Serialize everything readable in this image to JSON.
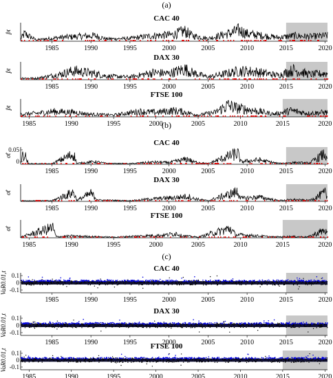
{
  "section_labels": [
    "(a)",
    "(b)",
    "(c)"
  ],
  "chart_data": [
    {
      "type": "line",
      "section": "(a)",
      "title": "CAC 40",
      "ylabel": "p̂t",
      "xlim": [
        1981,
        2020.3
      ],
      "xticks": [
        1985,
        1990,
        1995,
        2000,
        2005,
        2010,
        2015,
        2020
      ],
      "yticks": [],
      "shaded_region": [
        2015,
        2020.3
      ],
      "shade_color": "#c8c8c8",
      "line_color": "#000000",
      "marker_color": "#e00000",
      "series": [
        {
          "x": [
            1981,
            1981.5,
            1983,
            1986,
            1987.9,
            1990.5,
            1992,
            1995,
            1998,
            2000.5,
            2002,
            2003,
            2005,
            2008,
            2009,
            2010,
            2012,
            2014,
            2016,
            2018,
            2020
          ],
          "y": [
            0.05,
            0.16,
            0.03,
            0.08,
            0.1,
            0.12,
            0.05,
            0.06,
            0.12,
            0.14,
            0.22,
            0.12,
            0.06,
            0.18,
            0.24,
            0.16,
            0.12,
            0.08,
            0.12,
            0.1,
            0.12
          ]
        }
      ]
    },
    {
      "type": "line",
      "section": "(a)",
      "title": "DAX 30",
      "ylabel": "p̂t",
      "xlim": [
        1981,
        2020.3
      ],
      "xticks": [
        1985,
        1990,
        1995,
        2000,
        2005,
        2010,
        2015,
        2020
      ],
      "yticks": [],
      "shaded_region": [
        2015,
        2020.3
      ],
      "shade_color": "#c8c8c8",
      "line_color": "#000000",
      "marker_color": "#e00000",
      "series": [
        {
          "x": [
            1981,
            1983,
            1986,
            1987.8,
            1990.5,
            1992,
            1995,
            1998,
            2000,
            2002,
            2003,
            2005,
            2008,
            2009,
            2011,
            2014,
            2016,
            2018,
            2020
          ],
          "y": [
            0.04,
            0.03,
            0.12,
            0.2,
            0.14,
            0.08,
            0.06,
            0.16,
            0.14,
            0.24,
            0.16,
            0.06,
            0.16,
            0.2,
            0.18,
            0.1,
            0.22,
            0.12,
            0.14
          ]
        }
      ]
    },
    {
      "type": "line",
      "section": "(a)",
      "title": "FTSE 100",
      "ylabel": "p̂t",
      "xlim": [
        1984,
        2020.3
      ],
      "xticks": [
        1985,
        1990,
        1995,
        2000,
        2005,
        2010,
        2015,
        2020
      ],
      "yticks": [],
      "shaded_region": [
        2015,
        2020.3
      ],
      "shade_color": "#c8c8c8",
      "line_color": "#000000",
      "marker_color": "#e00000",
      "series": [
        {
          "x": [
            1984,
            1986,
            1987.8,
            1990.5,
            1992,
            1995,
            1998,
            2000,
            2002,
            2003,
            2005,
            2007,
            2008.5,
            2009.5,
            2011,
            2014,
            2016,
            2018,
            2020
          ],
          "y": [
            0.06,
            0.08,
            0.12,
            0.1,
            0.06,
            0.04,
            0.12,
            0.1,
            0.14,
            0.12,
            0.04,
            0.1,
            0.26,
            0.2,
            0.16,
            0.06,
            0.14,
            0.08,
            0.1
          ]
        }
      ]
    },
    {
      "type": "line",
      "section": "(b)",
      "title": "CAC 40",
      "ylabel": "σ̂t",
      "xlim": [
        1981,
        2020.3
      ],
      "xticks": [
        1985,
        1990,
        1995,
        2000,
        2005,
        2010,
        2015,
        2020
      ],
      "yticks": [
        "0.05",
        "0"
      ],
      "ylim": [
        0,
        0.06
      ],
      "shaded_region": [
        2015,
        2020.3
      ],
      "shade_color": "#c8c8c8",
      "line_color": "#000000",
      "marker_color": "#e00000",
      "series": [
        {
          "x": [
            1981,
            1981.4,
            1982,
            1985,
            1987.8,
            1988.2,
            1990.5,
            1992,
            1995,
            1998,
            2000,
            2002.5,
            2003,
            2005,
            2008.8,
            2009.2,
            2011.5,
            2014,
            2016,
            2018,
            2020,
            2020.2
          ],
          "y": [
            0.01,
            0.055,
            0.003,
            0.002,
            0.048,
            0.004,
            0.012,
            0.004,
            0.003,
            0.01,
            0.008,
            0.025,
            0.012,
            0.003,
            0.052,
            0.012,
            0.02,
            0.004,
            0.008,
            0.006,
            0.05,
            0.02
          ]
        }
      ]
    },
    {
      "type": "line",
      "section": "(b)",
      "title": "DAX 30",
      "ylabel": "σ̂t",
      "xlim": [
        1981,
        2020.3
      ],
      "xticks": [
        1985,
        1990,
        1995,
        2000,
        2005,
        2010,
        2015,
        2020
      ],
      "yticks": [],
      "ylim": [
        0,
        0.06
      ],
      "shaded_region": [
        2015,
        2020.3
      ],
      "shade_color": "#c8c8c8",
      "line_color": "#000000",
      "marker_color": "#e00000",
      "series": [
        {
          "x": [
            1981,
            1985,
            1987.8,
            1988.2,
            1990,
            1991,
            1995,
            1998,
            2001,
            2002.5,
            2003,
            2005,
            2008.8,
            2009.3,
            2011.5,
            2014,
            2016,
            2018,
            2020,
            2020.2
          ],
          "y": [
            0.003,
            0.003,
            0.042,
            0.005,
            0.036,
            0.006,
            0.003,
            0.012,
            0.018,
            0.024,
            0.014,
            0.003,
            0.045,
            0.014,
            0.02,
            0.004,
            0.008,
            0.005,
            0.04,
            0.02
          ]
        }
      ]
    },
    {
      "type": "line",
      "section": "(b)",
      "title": "FTSE 100",
      "ylabel": "σ̂t",
      "xlim": [
        1984,
        2020.3
      ],
      "xticks": [
        1985,
        1990,
        1995,
        2000,
        2005,
        2010,
        2015,
        2020
      ],
      "yticks": [],
      "ylim": [
        0,
        0.06
      ],
      "shaded_region": [
        2015,
        2020.3
      ],
      "shade_color": "#c8c8c8",
      "line_color": "#000000",
      "marker_color": "#e00000",
      "series": [
        {
          "x": [
            1984,
            1987.8,
            1988.2,
            1990,
            1992,
            1995,
            1998,
            2001,
            2002.5,
            2003,
            2005,
            2008.8,
            2009.4,
            2011.5,
            2014,
            2016,
            2018,
            2020,
            2020.2
          ],
          "y": [
            0.003,
            0.045,
            0.005,
            0.008,
            0.006,
            0.003,
            0.008,
            0.012,
            0.02,
            0.01,
            0.003,
            0.042,
            0.014,
            0.01,
            0.004,
            0.006,
            0.004,
            0.035,
            0.02
          ]
        }
      ]
    },
    {
      "type": "scatter",
      "section": "(c)",
      "title": "CAC 40",
      "ylabel": "VaR0.01,t",
      "xlim": [
        1981,
        2020.3
      ],
      "xticks": [
        1985,
        1990,
        1995,
        2000,
        2005,
        2010,
        2015,
        2020
      ],
      "yticks": [
        "0.1",
        "0",
        "-0.1"
      ],
      "ylim": [
        -0.12,
        0.12
      ],
      "shaded_region": [
        2015,
        2020.3
      ],
      "shade_color": "#c8c8c8",
      "line_color": "#0000e0",
      "marker_color": "#000000",
      "band_half_width": 0.04
    },
    {
      "type": "scatter",
      "section": "(c)",
      "title": "DAX 30",
      "ylabel": "VaR0.01,t",
      "xlim": [
        1981,
        2020.3
      ],
      "xticks": [
        1985,
        1990,
        1995,
        2000,
        2005,
        2010,
        2015,
        2020
      ],
      "yticks": [
        "0.1",
        "0",
        "-0.1"
      ],
      "ylim": [
        -0.12,
        0.12
      ],
      "shaded_region": [
        2015,
        2020.3
      ],
      "shade_color": "#c8c8c8",
      "line_color": "#0000e0",
      "marker_color": "#000000",
      "band_half_width": 0.04
    },
    {
      "type": "scatter",
      "section": "(c)",
      "title": "FTSE 100",
      "ylabel": "VaR0.01,t",
      "xlim": [
        1984,
        2020.3
      ],
      "xticks": [
        1985,
        1990,
        1995,
        2000,
        2005,
        2010,
        2015,
        2020
      ],
      "yticks": [
        "0.1",
        "0",
        "-0.1"
      ],
      "ylim": [
        -0.12,
        0.12
      ],
      "shaded_region": [
        2015,
        2020.3
      ],
      "shade_color": "#c8c8c8",
      "line_color": "#0000e0",
      "marker_color": "#000000",
      "band_half_width": 0.04
    }
  ]
}
